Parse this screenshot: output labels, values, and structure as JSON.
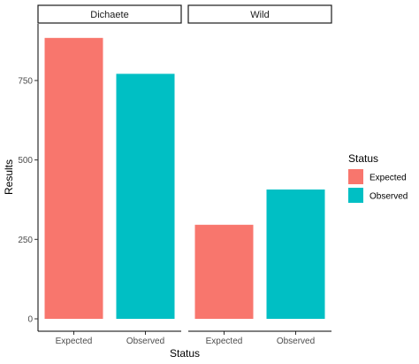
{
  "chart_data": {
    "type": "bar",
    "facets": [
      "Dichaete",
      "Wild"
    ],
    "categories": [
      "Expected",
      "Observed"
    ],
    "series": [
      {
        "facet": "Dichaete",
        "values": [
          884,
          771
        ]
      },
      {
        "facet": "Wild",
        "values": [
          296,
          407
        ]
      }
    ],
    "xlabel": "Status",
    "ylabel": "Results",
    "ylim": [
      0,
      1000
    ],
    "yticks": [
      0,
      250,
      500,
      750
    ],
    "grid": false,
    "legend": {
      "title": "Status",
      "placement": "right",
      "entries": [
        {
          "label": "Expected",
          "color": "#F8766D"
        },
        {
          "label": "Observed",
          "color": "#00BFC4"
        }
      ]
    },
    "colors": {
      "Expected": "#F8766D",
      "Observed": "#00BFC4"
    }
  }
}
